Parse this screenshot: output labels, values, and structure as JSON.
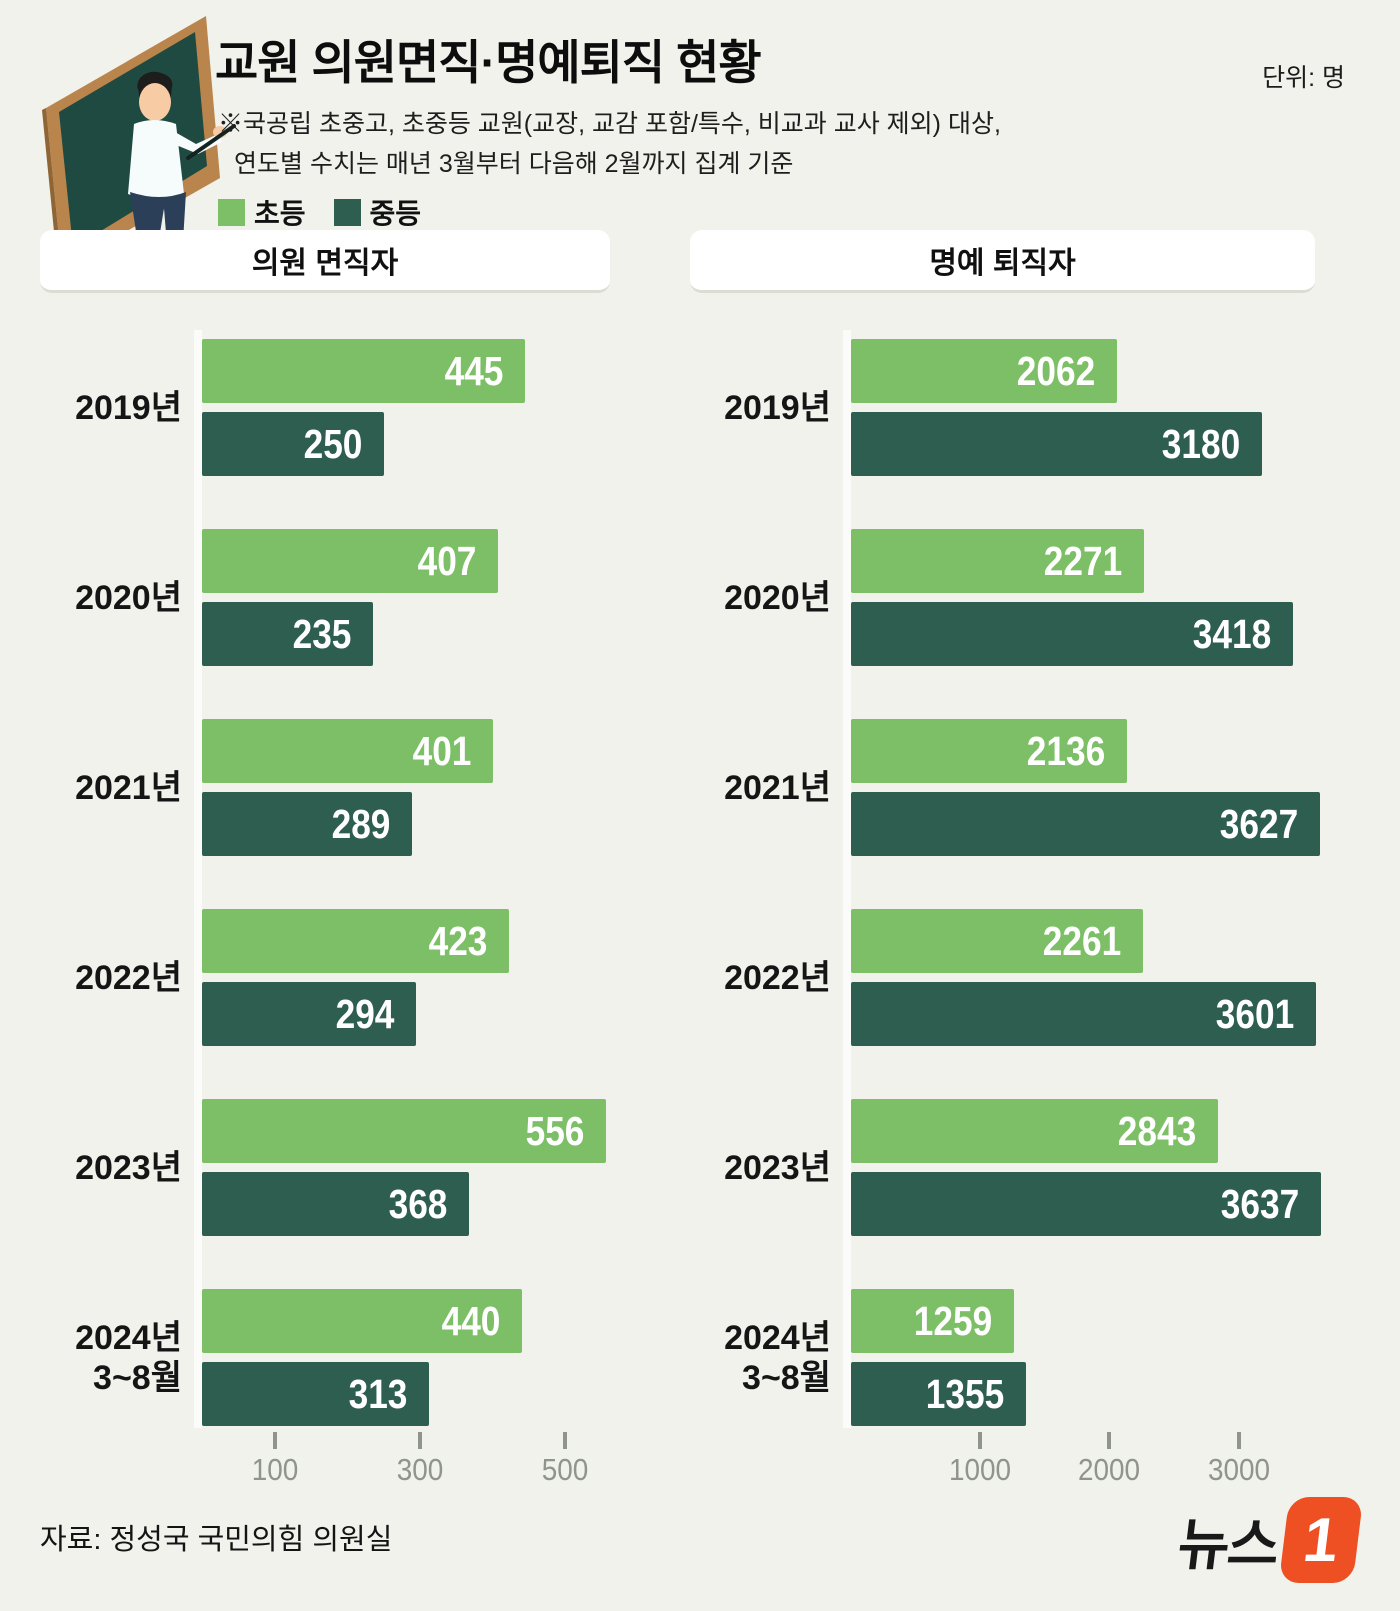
{
  "header": {
    "title": "교원 의원면직·명예퇴직 현황",
    "unit": "단위: 명",
    "note_line1": "※국공립 초중고, 초중등 교원(교장, 교감 포함/특수, 비교과 교사 제외) 대상,",
    "note_line2": "연도별 수치는 매년 3월부터 다음해 2월까지 집계 기준"
  },
  "legend": {
    "items": [
      {
        "label": "초등",
        "color": "#7dbf66"
      },
      {
        "label": "중등",
        "color": "#2e5e50"
      }
    ]
  },
  "colors": {
    "elementary_green": "#7dbf66",
    "secondary_green": "#2e5e50",
    "background": "#f0f2eb",
    "logo_orange": "#ee4f23"
  },
  "chart_data": {
    "type": "bar",
    "orientation": "horizontal",
    "unit": "명",
    "legend_position": "top-left",
    "grid": false,
    "categories": [
      "2019년",
      "2020년",
      "2021년",
      "2022년",
      "2023년",
      "2024년 3~8월"
    ],
    "charts": [
      {
        "title": "의원 면직자",
        "series": [
          {
            "name": "초등",
            "values": [
              445,
              407,
              401,
              423,
              556,
              440
            ]
          },
          {
            "name": "중등",
            "values": [
              250,
              235,
              289,
              294,
              368,
              313
            ]
          }
        ],
        "x_ticks": [
          100,
          300,
          500
        ],
        "xlim": [
          0,
          578
        ]
      },
      {
        "title": "명예 퇴직자",
        "series": [
          {
            "name": "초등",
            "values": [
              2062,
              2271,
              2136,
              2261,
              2843,
              1259
            ]
          },
          {
            "name": "중등",
            "values": [
              3180,
              3418,
              3627,
              3601,
              3637,
              1355
            ]
          }
        ],
        "x_ticks": [
          1000,
          2000,
          3000
        ],
        "xlim": [
          0,
          4100
        ]
      }
    ]
  },
  "source": "자료: 정성국 국민의힘 의원실",
  "logo": {
    "text": "뉴스",
    "numeral": "1"
  }
}
